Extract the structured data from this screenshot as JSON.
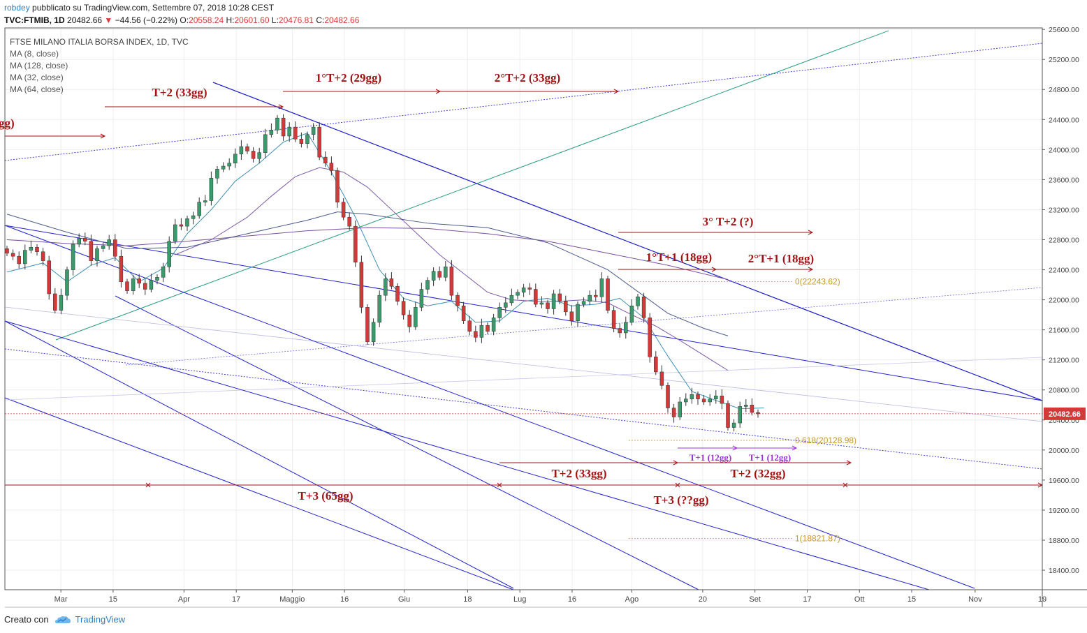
{
  "header": {
    "user": "robdey",
    "published": "pubblicato su TradingView.com, Settembre 07, 2018 10:28 CEST",
    "symbol": "TVC:FTMIB, 1D",
    "last": "20482.66",
    "change": "−44.56 (−0.22%)",
    "o_label": "O:",
    "o": "20558.24",
    "h_label": "H:",
    "h": "20601.60",
    "l_label": "L:",
    "l": "20476.81",
    "c_label": "C:",
    "c": "20482.66"
  },
  "legend": {
    "title": "FTSE MILANO ITALIA BORSA INDEX, 1D, TVC",
    "items": [
      "MA (8, close)",
      "MA (128, close)",
      "MA (32, close)",
      "MA (64, close)"
    ]
  },
  "footer": {
    "created_with": "Creato con",
    "brand": "TradingView"
  },
  "colors": {
    "up": "#3a9a6b",
    "down": "#d23a3a",
    "annotation": "#a11212",
    "fib": "#c79a2a",
    "channel": "#2222cc",
    "ma8": "#3f8fb5",
    "ma32": "#7a4e9c",
    "ma64": "#4a5a8c",
    "ma128": "#7e5aa8"
  },
  "chart_data": {
    "type": "candlestick",
    "y_ticks": [
      18400,
      18800,
      19200,
      19600,
      20000,
      20400,
      20800,
      21200,
      21600,
      22000,
      22400,
      22800,
      23200,
      23600,
      24000,
      24400,
      24800,
      25200,
      25600
    ],
    "y_tick_labels": [
      "18400.00",
      "18800.00",
      "19200.00",
      "19600.00",
      "20000.00",
      "20400.00",
      "20800.00",
      "21200.00",
      "21600.00",
      "22000.00",
      "22400.00",
      "22800.00",
      "23200.00",
      "23600.00",
      "24000.00",
      "24400.00",
      "24800.00",
      "25200.00",
      "25600.00"
    ],
    "ylim": [
      18140,
      25620
    ],
    "last_price_label": "20482.66",
    "last_price": 20482.66,
    "x_ticks": [
      {
        "label": "Mar",
        "date": "2018-03-01"
      },
      {
        "label": "15",
        "date": "2018-03-15"
      },
      {
        "label": "Apr",
        "date": "2018-04-03"
      },
      {
        "label": "17",
        "date": "2018-04-17"
      },
      {
        "label": "Maggio",
        "date": "2018-05-02"
      },
      {
        "label": "16",
        "date": "2018-05-16"
      },
      {
        "label": "Giu",
        "date": "2018-06-01"
      },
      {
        "label": "18",
        "date": "2018-06-18"
      },
      {
        "label": "Lug",
        "date": "2018-07-02"
      },
      {
        "label": "16",
        "date": "2018-07-16"
      },
      {
        "label": "Ago",
        "date": "2018-08-01"
      },
      {
        "label": "20",
        "date": "2018-08-20"
      },
      {
        "label": "Set",
        "date": "2018-09-03"
      },
      {
        "label": "17",
        "date": "2018-09-17"
      },
      {
        "label": "Ott",
        "date": "2018-10-01"
      },
      {
        "label": "15",
        "date": "2018-10-15"
      },
      {
        "label": "Nov",
        "date": "2018-11-01"
      },
      {
        "label": "19",
        "date": "2018-11-19"
      }
    ],
    "x_range": [
      "2018-02-14",
      "2018-11-19"
    ],
    "closes": [
      22620,
      22580,
      22480,
      22660,
      22700,
      22640,
      22520,
      22080,
      21860,
      22060,
      22400,
      22740,
      22820,
      22780,
      22520,
      22680,
      22720,
      22800,
      22580,
      22240,
      22120,
      22280,
      22220,
      22140,
      22260,
      22300,
      22440,
      22780,
      23000,
      22980,
      23080,
      23120,
      23300,
      23320,
      23620,
      23740,
      23780,
      23820,
      23940,
      24040,
      23980,
      23880,
      23960,
      24200,
      24260,
      24420,
      24180,
      24300,
      24140,
      24080,
      24200,
      24300,
      23900,
      23820,
      23720,
      23300,
      23100,
      22980,
      22500,
      21900,
      21440,
      21700,
      22060,
      22280,
      22180,
      21980,
      21800,
      21640,
      21900,
      22140,
      22260,
      22380,
      22300,
      22440,
      22060,
      21920,
      21720,
      21580,
      21500,
      21660,
      21580,
      21760,
      21900,
      21960,
      22060,
      22100,
      22160,
      22140,
      21940,
      21960,
      21880,
      22080,
      21980,
      21840,
      21720,
      21940,
      21980,
      22060,
      22040,
      22280,
      21860,
      21620,
      21560,
      21700,
      21920,
      22040,
      21760,
      21240,
      21040,
      20860,
      20560,
      20440,
      20640,
      20680,
      20740,
      20680,
      20640,
      20680,
      20720,
      20620,
      20300,
      20360,
      20580,
      20600,
      20500,
      20482.66
    ],
    "moving_averages": [
      {
        "name": "MA (8, close)",
        "points": [
          [
            0,
            22370
          ],
          [
            6,
            22490
          ],
          [
            10,
            22240
          ],
          [
            14,
            22460
          ],
          [
            18,
            22560
          ],
          [
            22,
            22240
          ],
          [
            26,
            22420
          ],
          [
            30,
            22880
          ],
          [
            34,
            23200
          ],
          [
            38,
            23580
          ],
          [
            42,
            23820
          ],
          [
            46,
            24100
          ],
          [
            50,
            24220
          ],
          [
            54,
            23700
          ],
          [
            58,
            23100
          ],
          [
            62,
            22400
          ],
          [
            66,
            22020
          ],
          [
            70,
            21920
          ],
          [
            74,
            21980
          ],
          [
            78,
            21700
          ],
          [
            82,
            21720
          ],
          [
            86,
            21980
          ],
          [
            90,
            22020
          ],
          [
            94,
            21920
          ],
          [
            98,
            21940
          ],
          [
            102,
            22020
          ],
          [
            106,
            21760
          ],
          [
            110,
            21250
          ],
          [
            114,
            20780
          ],
          [
            118,
            20660
          ],
          [
            122,
            20550
          ],
          [
            126,
            20560
          ]
        ]
      },
      {
        "name": "MA (32, close)",
        "points": [
          [
            28,
            22600
          ],
          [
            34,
            22800
          ],
          [
            40,
            23100
          ],
          [
            44,
            23380
          ],
          [
            48,
            23640
          ],
          [
            52,
            23760
          ],
          [
            56,
            23700
          ],
          [
            60,
            23500
          ],
          [
            64,
            23200
          ],
          [
            68,
            22900
          ],
          [
            72,
            22600
          ],
          [
            76,
            22350
          ],
          [
            80,
            22100
          ],
          [
            84,
            22000
          ],
          [
            88,
            21980
          ],
          [
            92,
            21980
          ],
          [
            96,
            22000
          ],
          [
            100,
            21960
          ],
          [
            104,
            21800
          ],
          [
            108,
            21650
          ],
          [
            112,
            21460
          ],
          [
            116,
            21260
          ],
          [
            120,
            21060
          ]
        ]
      },
      {
        "name": "MA (64, close)",
        "points": [
          [
            0,
            22800
          ],
          [
            10,
            22750
          ],
          [
            20,
            22720
          ],
          [
            30,
            22780
          ],
          [
            40,
            22850
          ],
          [
            50,
            22920
          ],
          [
            60,
            22960
          ],
          [
            70,
            22950
          ],
          [
            80,
            22880
          ],
          [
            90,
            22780
          ],
          [
            100,
            22620
          ],
          [
            110,
            22460
          ],
          [
            120,
            22270
          ]
        ]
      },
      {
        "name": "MA (128, close)",
        "points": [
          [
            0,
            23140
          ],
          [
            10,
            22900
          ],
          [
            20,
            22680
          ],
          [
            30,
            22700
          ],
          [
            40,
            22880
          ],
          [
            50,
            23060
          ],
          [
            55,
            23170
          ],
          [
            60,
            23140
          ],
          [
            70,
            23020
          ],
          [
            80,
            22960
          ],
          [
            90,
            22760
          ],
          [
            100,
            22400
          ],
          [
            110,
            21820
          ],
          [
            116,
            21620
          ],
          [
            120,
            21520
          ]
        ]
      }
    ],
    "fib_levels": [
      {
        "label": "0(22243.62)",
        "value": 22243.62
      },
      {
        "label": "0.618(20128.98)",
        "value": 20128.98
      },
      {
        "label": "1(18821.87)",
        "value": 18821.87
      }
    ],
    "annotations": [
      {
        "text": "gg)"
      },
      {
        "text": "T+2 (33gg)"
      },
      {
        "text": "1°T+2 (29gg)"
      },
      {
        "text": "2°T+2 (33gg)"
      },
      {
        "text": "3° T+2 (?)"
      },
      {
        "text": "1°T+1 (18gg)"
      },
      {
        "text": "2°T+1 (18gg)"
      },
      {
        "text": "T+1 (12gg)"
      },
      {
        "text": "T+1 (12gg)"
      },
      {
        "text": "T+2 (33gg)"
      },
      {
        "text": "T+2 (32gg)"
      },
      {
        "text": "T+3 (65gg)"
      },
      {
        "text": "T+3 (??gg)"
      }
    ]
  }
}
